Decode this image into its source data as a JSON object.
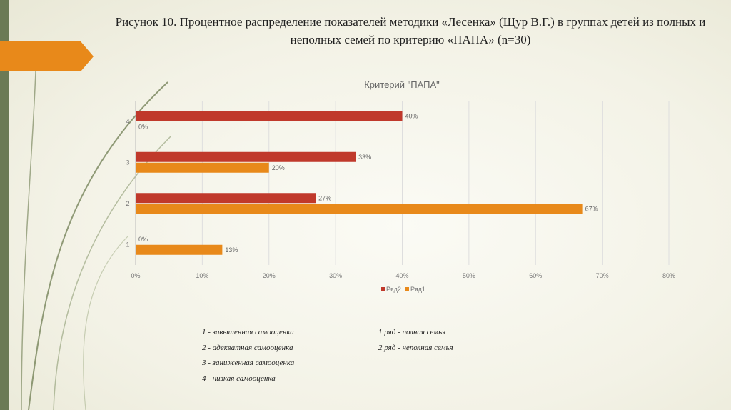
{
  "title": "Рисунок 10. Процентное распределение показателей методики «Лесенка» (Щур В.Г.) в группах детей из полных и неполных семей по критерию «ПАПА» (n=30)",
  "colors": {
    "series2": "#c0392b",
    "series1": "#e8891a",
    "strip": "#6b7a55",
    "accent": "#e8891a"
  },
  "chart_data": {
    "type": "bar",
    "orientation": "horizontal",
    "title": "Критерий \"ПАПА\"",
    "categories": [
      "1",
      "2",
      "3",
      "4"
    ],
    "series": [
      {
        "name": "Ряд2",
        "color": "#c0392b",
        "values": [
          0,
          27,
          33,
          40
        ],
        "labels": [
          "0%",
          "27%",
          "33%",
          "40%"
        ]
      },
      {
        "name": "Ряд1",
        "color": "#e8891a",
        "values": [
          13,
          67,
          20,
          0
        ],
        "labels": [
          "13%",
          "67%",
          "20%",
          "0%"
        ]
      }
    ],
    "xlim": [
      0,
      80
    ],
    "xticks": [
      "0%",
      "10%",
      "20%",
      "30%",
      "40%",
      "50%",
      "60%",
      "70%",
      "80%"
    ],
    "grid": true,
    "legend_position": "bottom"
  },
  "notes_left": [
    "1 - завышенная самооценка",
    "2 - адекватная самооценка",
    "3 - заниженная самооценка",
    "4 - низкая самооценка"
  ],
  "notes_right": [
    "1 ряд - полная семья",
    "2 ряд -  неполная семья"
  ]
}
